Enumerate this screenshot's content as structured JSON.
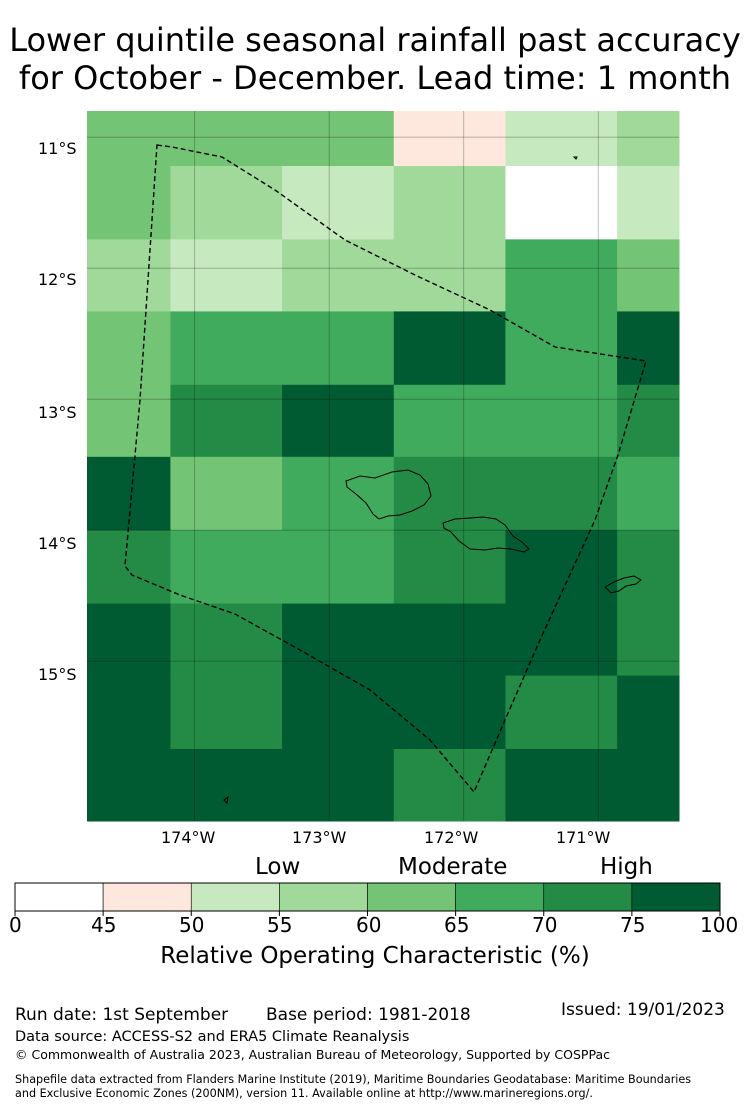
{
  "title": {
    "line1": "Lower quintile seasonal rainfall past accuracy",
    "line2": "for October - December. Lead time: 1 month"
  },
  "map": {
    "latitude_labels": [
      "11°S",
      "12°S",
      "13°S",
      "14°S",
      "15°S"
    ],
    "longitude_labels": [
      "174°W",
      "173°W",
      "172°W",
      "171°W"
    ],
    "grid_lon_edges": [
      -174.8,
      -174.18,
      -173.35,
      -172.52,
      -171.69,
      -170.86,
      -170.4
    ],
    "grid_lat_edges": [
      -10.8,
      -11.22,
      -11.78,
      -12.33,
      -12.89,
      -13.44,
      -14.0,
      -14.56,
      -15.11,
      -15.67,
      -16.22
    ],
    "roc_values_pct": [
      [
        62,
        62,
        62,
        48,
        53,
        57
      ],
      [
        62,
        57,
        53,
        57,
        40,
        53
      ],
      [
        57,
        53,
        57,
        57,
        67,
        62
      ],
      [
        62,
        67,
        67,
        80,
        67,
        80
      ],
      [
        62,
        72,
        80,
        67,
        67,
        72
      ],
      [
        80,
        62,
        67,
        72,
        72,
        67
      ],
      [
        72,
        67,
        67,
        72,
        80,
        72
      ],
      [
        80,
        72,
        80,
        80,
        80,
        72
      ],
      [
        80,
        72,
        80,
        80,
        72,
        80
      ],
      [
        80,
        80,
        80,
        72,
        80,
        80
      ]
    ]
  },
  "colorbar": {
    "categories": [
      "Low",
      "Moderate",
      "High"
    ],
    "ticks": [
      0,
      45,
      50,
      55,
      60,
      65,
      70,
      75,
      100
    ],
    "colors": [
      "#ffffff",
      "#fee8dd",
      "#c7e9c0",
      "#a1d99b",
      "#74c476",
      "#41ab5d",
      "#238b45",
      "#005a32"
    ],
    "label": "Relative Operating Characteristic (%)"
  },
  "footer": {
    "run_date": "Run date: 1st September",
    "base_period": "Base period: 1981-2018",
    "issued": "Issued: 19/01/2023",
    "data_source": "Data source: ACCESS-S2 and ERA5 Climate Reanalysis",
    "copyright": "© Commonwealth of Australia 2023, Australian Bureau of Meteorology, Supported by COSPPac",
    "shapefile_line1": "Shapefile data extracted from Flanders Marine Institute (2019), Maritime Boundaries Geodatabase: Maritime Boundaries",
    "shapefile_line2": "and Exclusive Economic Zones (200NM), version 11. Available online at http://www.marineregions.org/."
  }
}
